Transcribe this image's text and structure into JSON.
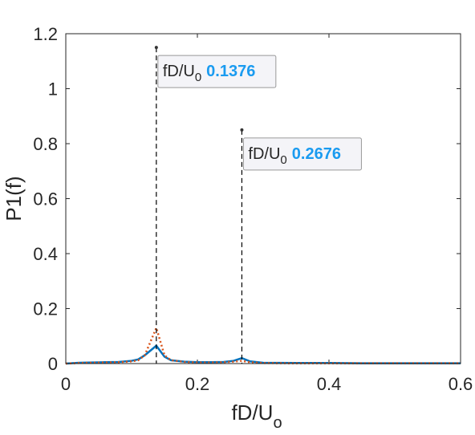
{
  "chart_data": {
    "type": "line",
    "xlabel": "fD/U",
    "xlabel_sub": "o",
    "ylabel": "P1(f)",
    "x": [
      0,
      0.02,
      0.04,
      0.06,
      0.08,
      0.1,
      0.11,
      0.12,
      0.1376,
      0.15,
      0.16,
      0.18,
      0.2,
      0.22,
      0.24,
      0.255,
      0.2676,
      0.28,
      0.3,
      0.35,
      0.4,
      0.45,
      0.5,
      0.55,
      0.6
    ],
    "series": [
      {
        "color": "#0072bd",
        "style": "solid",
        "values": [
          0,
          0.003,
          0.004,
          0.005,
          0.006,
          0.01,
          0.015,
          0.03,
          0.065,
          0.025,
          0.012,
          0.007,
          0.005,
          0.005,
          0.006,
          0.01,
          0.02,
          0.008,
          0.003,
          0.002,
          0.002,
          0.001,
          0.001,
          0.001,
          0.001
        ]
      },
      {
        "color": "#d95319",
        "style": "dotted",
        "values": [
          0,
          0.002,
          0.003,
          0.004,
          0.005,
          0.008,
          0.012,
          0.03,
          0.13,
          0.03,
          0.012,
          0.006,
          0.004,
          0.004,
          0.005,
          0.007,
          0.01,
          0.005,
          0.002,
          0.001,
          0.001,
          0.001,
          0.001,
          0.001,
          0.001
        ]
      }
    ],
    "xlim": [
      0,
      0.6
    ],
    "xticks": [
      0,
      0.2,
      0.4,
      0.6
    ],
    "ylim": [
      0,
      1.2
    ],
    "yticks": [
      0,
      0.2,
      0.4,
      0.6,
      0.8,
      1,
      1.2
    ],
    "datatips": [
      {
        "label": "fD/U",
        "label_sub": "0",
        "x": 0.1376,
        "y": 1.15
      },
      {
        "label": "fD/U",
        "label_sub": "0",
        "x": 0.2676,
        "y": 0.85
      }
    ]
  }
}
